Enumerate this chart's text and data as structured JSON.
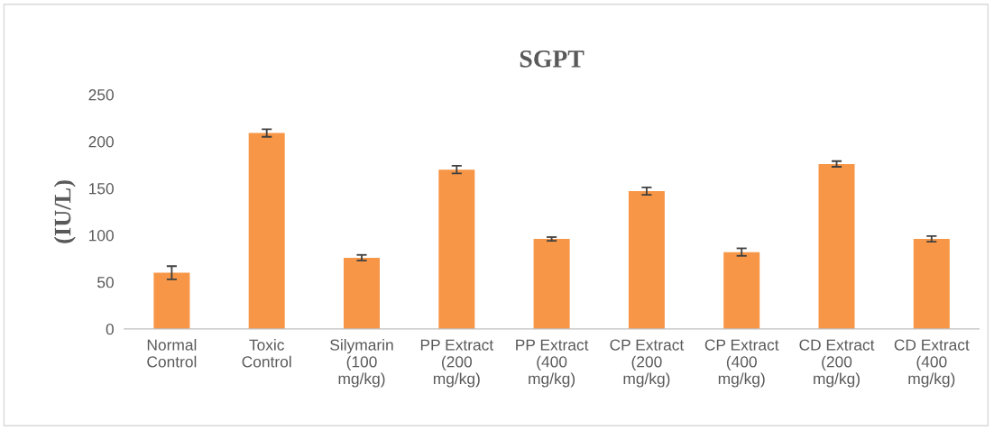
{
  "chart_data": {
    "type": "bar",
    "title": "SGPT",
    "ylabel": "(IU/L)",
    "categories": [
      "Normal\nControl",
      "Toxic\nControl",
      "Silymarin\n(100\nmg/kg)",
      "PP Extract\n(200\nmg/kg)",
      "PP Extract\n(400\nmg/kg)",
      "CP Extract\n(200\nmg/kg)",
      "CP Extract\n(400\nmg/kg)",
      "CD Extract\n(200\nmg/kg)",
      "CD Extract\n(400\nmg/kg)"
    ],
    "values": [
      60,
      209,
      76,
      170,
      96,
      147,
      82,
      176,
      96
    ],
    "errors": [
      7,
      4,
      3,
      4,
      2,
      4,
      4,
      3,
      3
    ],
    "color": "#f79646",
    "ylim": [
      0,
      250
    ],
    "yticks": [
      0,
      50,
      100,
      150,
      200,
      250
    ],
    "grid": false
  }
}
